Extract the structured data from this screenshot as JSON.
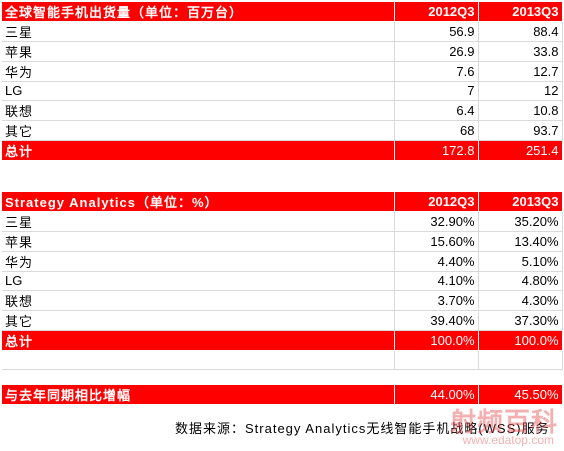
{
  "table_shipments": {
    "title": "全球智能手机出货量（单位：百万台）",
    "col1": "2012Q3",
    "col2": "2013Q3",
    "rows": [
      {
        "brand": "三星",
        "q2012": "56.9",
        "q2013": "88.4"
      },
      {
        "brand": "苹果",
        "q2012": "26.9",
        "q2013": "33.8"
      },
      {
        "brand": "华为",
        "q2012": "7.6",
        "q2013": "12.7"
      },
      {
        "brand": "LG",
        "q2012": "7",
        "q2013": "12"
      },
      {
        "brand": "联想",
        "q2012": "6.4",
        "q2013": "10.8"
      },
      {
        "brand": "其它",
        "q2012": "68",
        "q2013": "93.7"
      }
    ],
    "total": {
      "label": "总计",
      "q2012": "172.8",
      "q2013": "251.4"
    }
  },
  "table_share": {
    "title": "Strategy Analytics（单位：%）",
    "col1": "2012Q3",
    "col2": "2013Q3",
    "rows": [
      {
        "brand": "三星",
        "q2012": "32.90%",
        "q2013": "35.20%"
      },
      {
        "brand": "苹果",
        "q2012": "15.60%",
        "q2013": "13.40%"
      },
      {
        "brand": "华为",
        "q2012": "4.40%",
        "q2013": "5.10%"
      },
      {
        "brand": "LG",
        "q2012": "4.10%",
        "q2013": "4.80%"
      },
      {
        "brand": "联想",
        "q2012": "3.70%",
        "q2013": "4.30%"
      },
      {
        "brand": "其它",
        "q2012": "39.40%",
        "q2013": "37.30%"
      }
    ],
    "total": {
      "label": "总计",
      "q2012": "100.0%",
      "q2013": "100.0%"
    }
  },
  "growth": {
    "label": "与去年同期相比增幅",
    "q2012": "44.00%",
    "q2013": "45.50%"
  },
  "source": "数据来源：Strategy Analytics无线智能手机战略(WSS)服务",
  "watermark": {
    "text": "射频百科",
    "url": "www.edatop.com"
  },
  "colors": {
    "header_red": "#ff0000"
  }
}
